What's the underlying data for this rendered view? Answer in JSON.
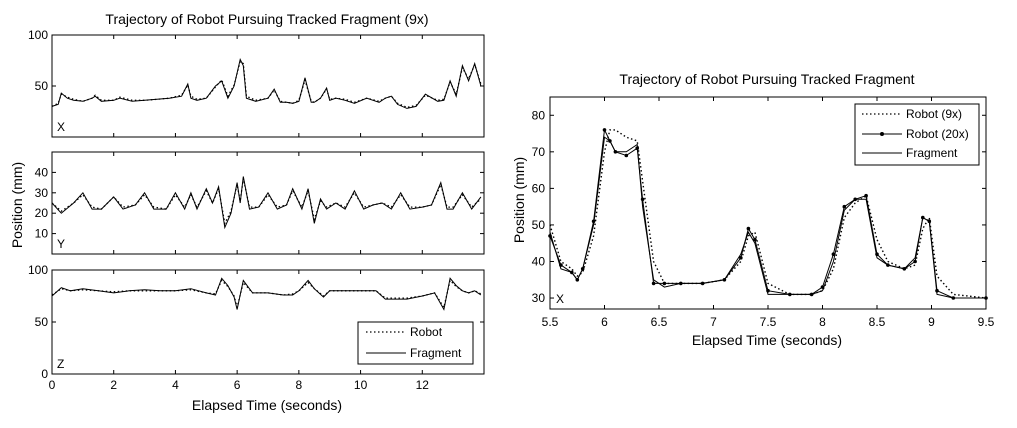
{
  "chart_data": [
    {
      "type": "line",
      "title": "Trajectory of Robot Pursuing Tracked Fragment (9x)",
      "xlabel": "Elapsed Time (seconds)",
      "ylabel": "Position (mm)",
      "xlim": [
        0,
        14
      ],
      "xticks": [
        "0",
        "2",
        "4",
        "6",
        "8",
        "10",
        "12"
      ],
      "grid": false,
      "legend_location": "bottom-right of Z panel",
      "legend": [
        {
          "name": "Robot",
          "style": "dotted"
        },
        {
          "name": "Fragment",
          "style": "solid"
        }
      ],
      "panels": [
        {
          "tag": "X",
          "ylim": [
            0,
            100
          ],
          "yticks": [
            "50",
            "100"
          ],
          "x": [
            0,
            0.2,
            0.3,
            0.5,
            0.7,
            1.0,
            1.3,
            1.4,
            1.6,
            2.0,
            2.2,
            2.6,
            3.0,
            3.4,
            3.8,
            4.2,
            4.4,
            4.5,
            4.7,
            5.0,
            5.3,
            5.5,
            5.7,
            5.9,
            6.1,
            6.2,
            6.3,
            6.6,
            7.0,
            7.2,
            7.4,
            7.6,
            7.8,
            8.0,
            8.2,
            8.4,
            8.5,
            8.7,
            8.9,
            9.0,
            9.2,
            9.5,
            9.8,
            10.2,
            10.6,
            10.8,
            11.0,
            11.2,
            11.5,
            11.8,
            12.1,
            12.5,
            12.7,
            12.9,
            13.1,
            13.3,
            13.5,
            13.7,
            13.9
          ],
          "series": [
            {
              "name": "Fragment",
              "values": [
                30,
                32,
                43,
                38,
                36,
                35,
                38,
                40,
                35,
                36,
                38,
                35,
                36,
                37,
                38,
                40,
                52,
                38,
                36,
                38,
                50,
                55,
                38,
                50,
                76,
                70,
                38,
                35,
                38,
                47,
                34,
                34,
                33,
                35,
                58,
                34,
                34,
                38,
                48,
                36,
                38,
                36,
                33,
                38,
                34,
                38,
                40,
                32,
                28,
                30,
                42,
                35,
                36,
                55,
                40,
                70,
                55,
                72,
                50
              ]
            },
            {
              "name": "Robot",
              "values": [
                30,
                33,
                42,
                39,
                37,
                35,
                38,
                41,
                36,
                36,
                39,
                36,
                36,
                37,
                38,
                41,
                51,
                40,
                37,
                38,
                49,
                56,
                40,
                51,
                74,
                72,
                40,
                36,
                38,
                46,
                35,
                34,
                33,
                36,
                56,
                35,
                34,
                38,
                47,
                37,
                38,
                37,
                34,
                38,
                35,
                38,
                40,
                33,
                29,
                31,
                41,
                36,
                37,
                54,
                42,
                68,
                57,
                71,
                52
              ]
            }
          ]
        },
        {
          "tag": "Y",
          "ylim": [
            0,
            50
          ],
          "yticks": [
            "10",
            "20",
            "30",
            "40"
          ],
          "x": [
            0,
            0.3,
            0.7,
            1.0,
            1.3,
            1.6,
            2.0,
            2.3,
            2.7,
            3.0,
            3.3,
            3.7,
            4.0,
            4.3,
            4.5,
            4.7,
            5.0,
            5.2,
            5.4,
            5.6,
            5.8,
            6.0,
            6.1,
            6.2,
            6.4,
            6.7,
            7.0,
            7.3,
            7.6,
            7.8,
            8.1,
            8.3,
            8.5,
            8.7,
            8.9,
            9.2,
            9.5,
            9.8,
            10.1,
            10.4,
            10.7,
            11.0,
            11.3,
            11.6,
            12.0,
            12.3,
            12.6,
            12.8,
            13.0,
            13.3,
            13.6,
            13.9
          ],
          "series": [
            {
              "name": "Fragment",
              "values": [
                25,
                20,
                25,
                30,
                22,
                22,
                28,
                22,
                24,
                30,
                22,
                22,
                30,
                22,
                30,
                22,
                32,
                25,
                33,
                13,
                20,
                35,
                25,
                38,
                22,
                23,
                30,
                22,
                24,
                32,
                22,
                32,
                15,
                27,
                22,
                25,
                22,
                31,
                22,
                24,
                25,
                22,
                30,
                22,
                23,
                24,
                35,
                22,
                22,
                30,
                22,
                28
              ]
            },
            {
              "name": "Robot",
              "values": [
                25,
                21,
                25,
                29,
                23,
                22,
                28,
                23,
                24,
                29,
                23,
                22,
                29,
                23,
                29,
                23,
                31,
                25,
                32,
                15,
                21,
                34,
                26,
                37,
                23,
                23,
                29,
                23,
                24,
                31,
                23,
                31,
                17,
                26,
                23,
                25,
                23,
                30,
                23,
                24,
                25,
                23,
                29,
                23,
                23,
                24,
                34,
                23,
                23,
                29,
                23,
                27
              ]
            }
          ]
        },
        {
          "tag": "Z",
          "ylim": [
            0,
            100
          ],
          "yticks": [
            "50",
            "100"
          ],
          "x": [
            0,
            0.3,
            0.6,
            1.0,
            1.5,
            2.0,
            2.5,
            3.0,
            3.5,
            4.0,
            4.5,
            5.0,
            5.3,
            5.5,
            5.7,
            5.9,
            6.0,
            6.2,
            6.5,
            7.0,
            7.5,
            7.8,
            8.0,
            8.3,
            8.5,
            8.8,
            9.0,
            9.5,
            10.0,
            10.5,
            10.8,
            11.0,
            11.5,
            12.0,
            12.4,
            12.7,
            12.9,
            13.1,
            13.3,
            13.5,
            13.7,
            13.9
          ],
          "series": [
            {
              "name": "Fragment",
              "values": [
                75,
                83,
                80,
                82,
                80,
                78,
                80,
                81,
                80,
                80,
                82,
                78,
                76,
                92,
                85,
                74,
                62,
                90,
                78,
                78,
                76,
                76,
                80,
                90,
                82,
                74,
                80,
                80,
                80,
                80,
                72,
                72,
                72,
                75,
                78,
                62,
                92,
                85,
                80,
                78,
                80,
                76
              ]
            },
            {
              "name": "Robot",
              "values": [
                76,
                82,
                80,
                81,
                80,
                79,
                80,
                80,
                80,
                80,
                81,
                78,
                77,
                90,
                84,
                75,
                64,
                88,
                78,
                78,
                76,
                77,
                80,
                88,
                82,
                75,
                80,
                80,
                80,
                80,
                73,
                73,
                73,
                75,
                78,
                64,
                90,
                84,
                80,
                78,
                80,
                77
              ]
            }
          ]
        }
      ]
    },
    {
      "type": "line",
      "title": "Trajectory of Robot Pursuing Tracked Fragment",
      "xlabel": "Elapsed Time (seconds)",
      "ylabel": "Position (mm)",
      "tag": "X",
      "xlim": [
        5.5,
        9.5
      ],
      "ylim": [
        27,
        85
      ],
      "xticks": [
        "5.5",
        "6",
        "6.5",
        "7",
        "7.5",
        "8",
        "8.5",
        "9",
        "9.5"
      ],
      "yticks": [
        "30",
        "40",
        "50",
        "60",
        "70",
        "80"
      ],
      "grid": false,
      "legend_location": "top-right",
      "legend": [
        {
          "name": "Robot (9x)",
          "style": "dotted"
        },
        {
          "name": "Robot (20x)",
          "style": "solid-markers"
        },
        {
          "name": "Fragment",
          "style": "solid"
        }
      ],
      "x": [
        5.5,
        5.6,
        5.7,
        5.75,
        5.8,
        5.9,
        6.0,
        6.05,
        6.1,
        6.2,
        6.3,
        6.35,
        6.45,
        6.55,
        6.7,
        6.9,
        7.1,
        7.25,
        7.32,
        7.38,
        7.5,
        7.7,
        7.9,
        8.0,
        8.1,
        8.2,
        8.3,
        8.4,
        8.5,
        8.6,
        8.75,
        8.85,
        8.92,
        8.98,
        9.05,
        9.2,
        9.5
      ],
      "series": [
        {
          "name": "Fragment",
          "values": [
            48,
            38,
            37,
            35,
            38,
            50,
            74,
            73,
            70,
            70,
            72,
            55,
            35,
            33,
            34,
            34,
            35,
            42,
            48,
            45,
            31,
            31,
            31,
            32,
            40,
            54,
            57,
            57,
            41,
            39,
            38,
            41,
            52,
            51,
            31,
            30,
            30
          ]
        },
        {
          "name": "Robot (20x)",
          "values": [
            47,
            39,
            37,
            35,
            38,
            51,
            76,
            73,
            70,
            69,
            71,
            57,
            34,
            34,
            34,
            34,
            35,
            41,
            49,
            46,
            32,
            31,
            31,
            33,
            42,
            55,
            57,
            58,
            42,
            39,
            38,
            40,
            52,
            51,
            32,
            30,
            30
          ]
        },
        {
          "name": "Robot (9x)",
          "values": [
            50,
            40,
            38,
            36,
            37,
            47,
            70,
            76,
            76,
            74,
            73,
            62,
            40,
            34,
            34,
            34,
            35,
            40,
            47,
            48,
            34,
            31,
            31,
            32,
            38,
            52,
            56,
            58,
            46,
            40,
            38,
            39,
            49,
            52,
            36,
            31,
            30
          ]
        }
      ]
    }
  ]
}
